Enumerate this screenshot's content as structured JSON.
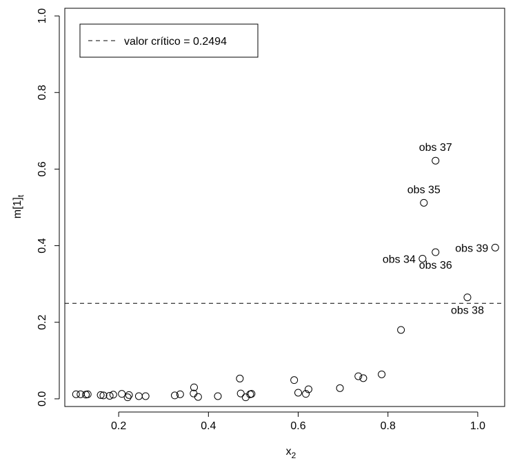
{
  "chart_data": {
    "type": "scatter",
    "title": "",
    "xlabel": "x",
    "xlabel_sub": "2",
    "ylabel": "m[1]",
    "ylabel_sub": "t",
    "xlim": [
      0.08,
      1.06
    ],
    "ylim": [
      -0.02,
      1.02
    ],
    "xticks": [
      0.2,
      0.4,
      0.6,
      0.8,
      1.0
    ],
    "xtick_labels": [
      "0.2",
      "0.4",
      "0.6",
      "0.8",
      "1.0"
    ],
    "yticks": [
      0.0,
      0.2,
      0.4,
      0.6,
      0.8,
      1.0
    ],
    "ytick_labels": [
      "0.0",
      "0.2",
      "0.4",
      "0.6",
      "0.8",
      "1.0"
    ],
    "grid": false,
    "legend": {
      "position": "top-left",
      "label": "valor crítico = 0.2494",
      "line_style": "dashed"
    },
    "threshold": 0.2494,
    "points": [
      {
        "x": 0.105,
        "y": 0.012
      },
      {
        "x": 0.115,
        "y": 0.012
      },
      {
        "x": 0.127,
        "y": 0.011
      },
      {
        "x": 0.131,
        "y": 0.012
      },
      {
        "x": 0.16,
        "y": 0.01
      },
      {
        "x": 0.166,
        "y": 0.009
      },
      {
        "x": 0.18,
        "y": 0.008
      },
      {
        "x": 0.188,
        "y": 0.011
      },
      {
        "x": 0.207,
        "y": 0.013
      },
      {
        "x": 0.22,
        "y": 0.004
      },
      {
        "x": 0.223,
        "y": 0.01
      },
      {
        "x": 0.245,
        "y": 0.007
      },
      {
        "x": 0.26,
        "y": 0.007
      },
      {
        "x": 0.325,
        "y": 0.009
      },
      {
        "x": 0.337,
        "y": 0.012
      },
      {
        "x": 0.368,
        "y": 0.03
      },
      {
        "x": 0.367,
        "y": 0.014
      },
      {
        "x": 0.377,
        "y": 0.005
      },
      {
        "x": 0.421,
        "y": 0.007
      },
      {
        "x": 0.47,
        "y": 0.053
      },
      {
        "x": 0.472,
        "y": 0.014
      },
      {
        "x": 0.483,
        "y": 0.004
      },
      {
        "x": 0.493,
        "y": 0.012
      },
      {
        "x": 0.496,
        "y": 0.013
      },
      {
        "x": 0.591,
        "y": 0.049
      },
      {
        "x": 0.6,
        "y": 0.016
      },
      {
        "x": 0.617,
        "y": 0.013
      },
      {
        "x": 0.623,
        "y": 0.025
      },
      {
        "x": 0.693,
        "y": 0.028
      },
      {
        "x": 0.734,
        "y": 0.059
      },
      {
        "x": 0.745,
        "y": 0.054
      },
      {
        "x": 0.786,
        "y": 0.064
      },
      {
        "x": 0.829,
        "y": 0.18
      },
      {
        "x": 0.877,
        "y": 0.366
      },
      {
        "x": 0.88,
        "y": 0.512
      },
      {
        "x": 0.906,
        "y": 0.383
      },
      {
        "x": 0.906,
        "y": 0.622
      },
      {
        "x": 0.977,
        "y": 0.265
      },
      {
        "x": 1.039,
        "y": 0.395
      }
    ],
    "annotations": [
      {
        "text": "obs 37",
        "x": 0.906,
        "y": 0.622,
        "pos": "above"
      },
      {
        "text": "obs 35",
        "x": 0.88,
        "y": 0.512,
        "pos": "above"
      },
      {
        "text": "obs 34",
        "x": 0.877,
        "y": 0.366,
        "pos": "left"
      },
      {
        "text": "obs 36",
        "x": 0.906,
        "y": 0.383,
        "pos": "below"
      },
      {
        "text": "obs 39",
        "x": 1.039,
        "y": 0.395,
        "pos": "left"
      },
      {
        "text": "obs 38",
        "x": 0.977,
        "y": 0.265,
        "pos": "below"
      }
    ]
  }
}
